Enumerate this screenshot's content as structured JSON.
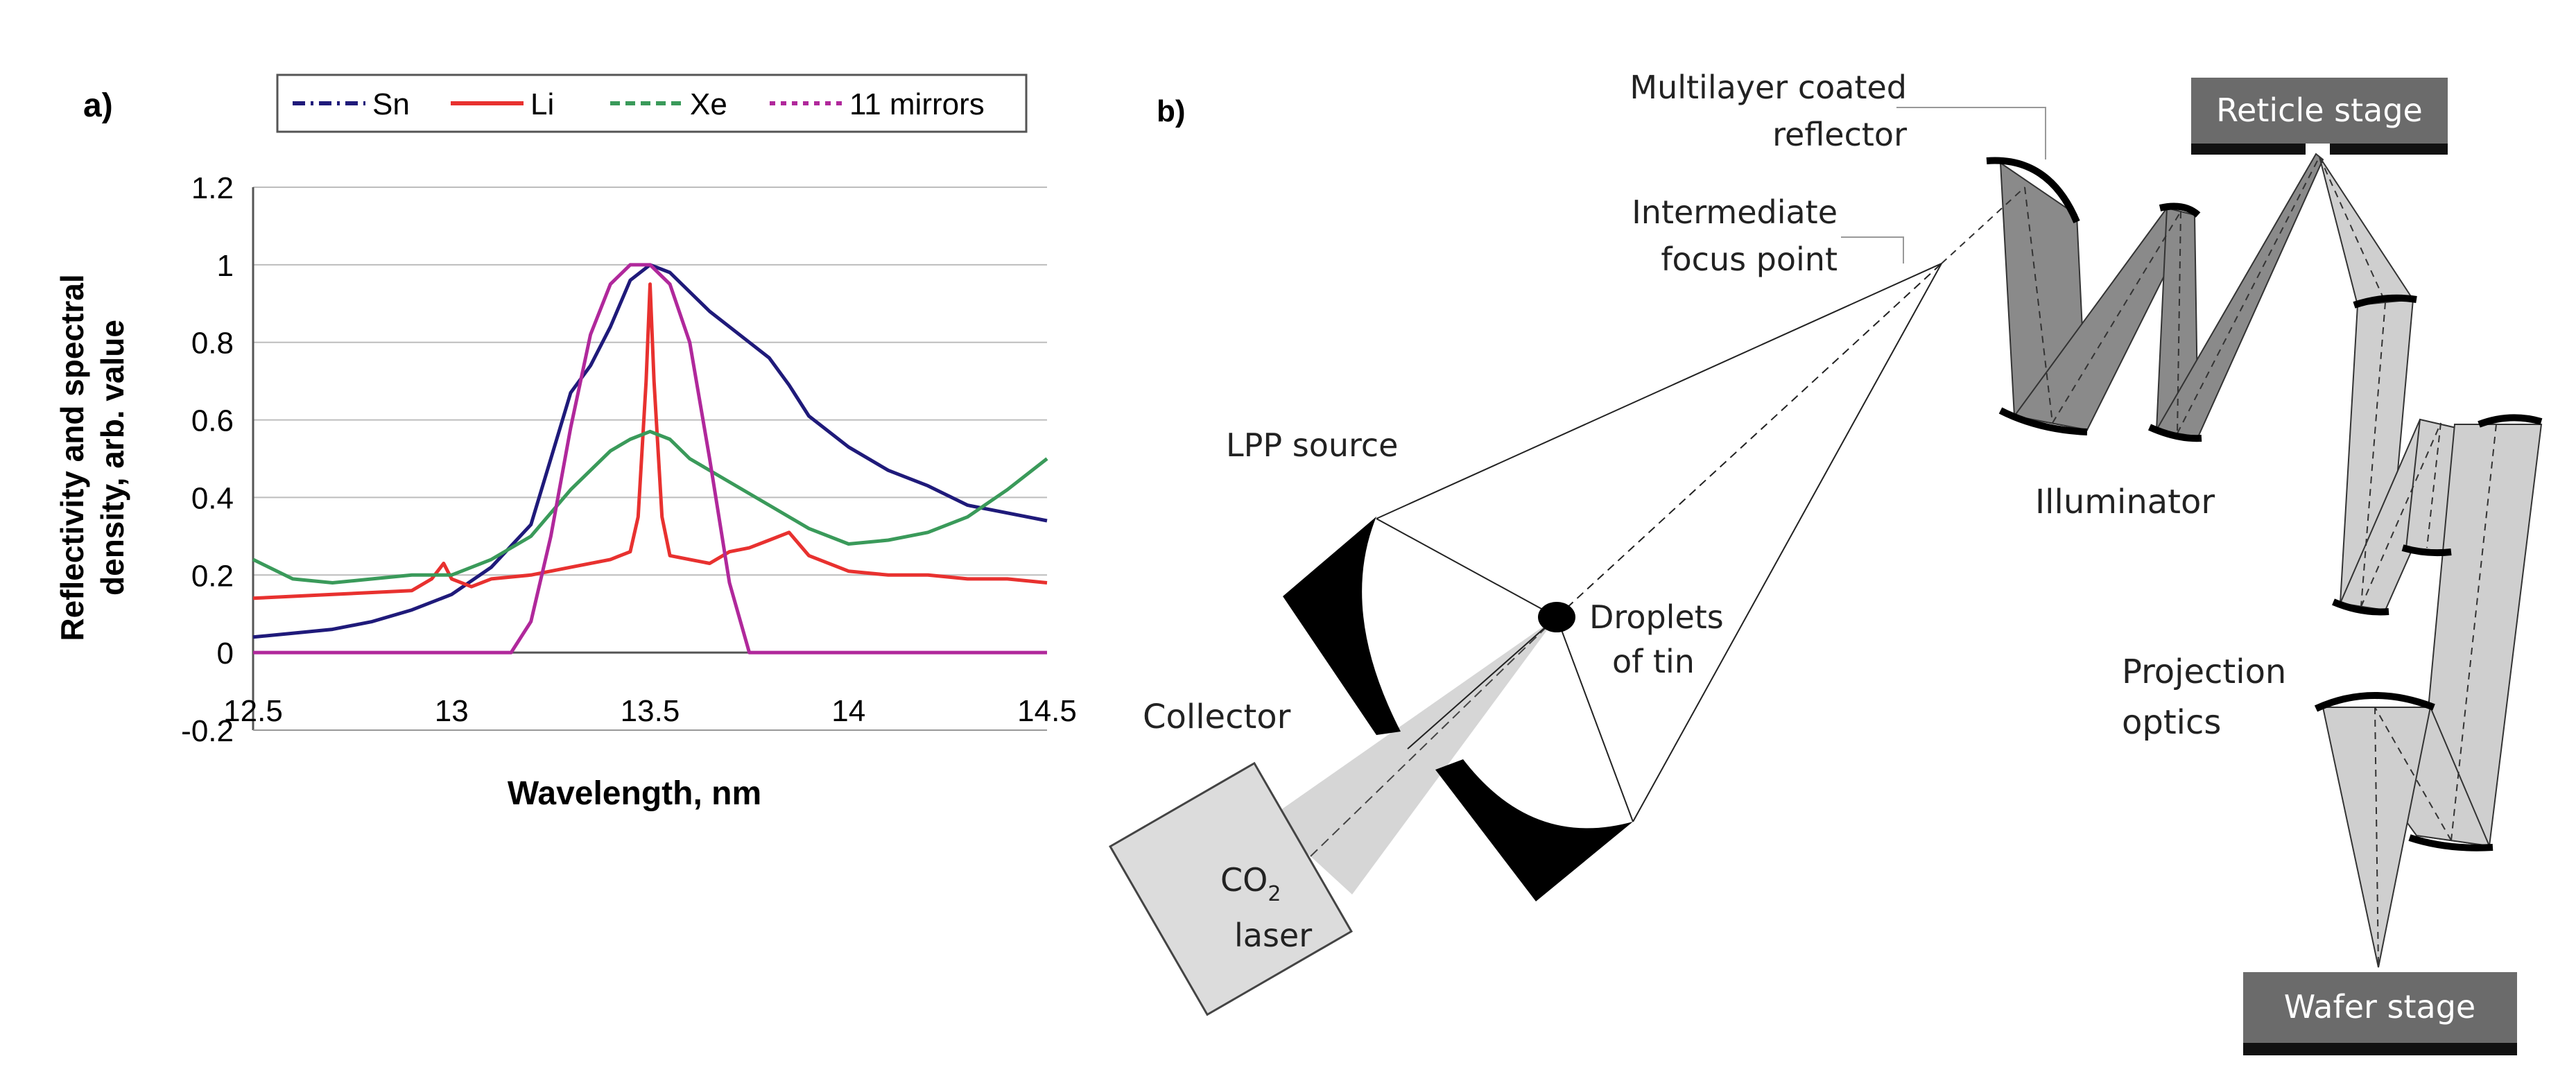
{
  "panel_a": {
    "label": "a)"
  },
  "panel_b": {
    "label": "b)",
    "labels": {
      "multilayer_line1": "Multilayer coated",
      "multilayer_line2": "reflector",
      "reticle_stage": "Reticle stage",
      "intermediate_line1": "Intermediate",
      "intermediate_line2": "focus point",
      "lpp_source": "LPP source",
      "illuminator": "Illuminator",
      "droplets_line1": "Droplets",
      "droplets_line2": "of tin",
      "collector": "Collector",
      "projection_line1": "Projection",
      "projection_line2": "optics",
      "co2_main": "CO",
      "co2_sub": "2",
      "laser": "laser",
      "wafer_stage": "Wafer stage"
    }
  },
  "chart_data": {
    "type": "line",
    "title": "",
    "xlabel": "Wavelength, nm",
    "ylabel_line1": "Reflectivity and spectral",
    "ylabel_line2": "density, arb. value",
    "xlim": [
      12.5,
      14.5
    ],
    "ylim": [
      -0.2,
      1.2
    ],
    "xticks": [
      "12.5",
      "13",
      "13.5",
      "14",
      "14.5"
    ],
    "yticks": [
      "-0.2",
      "0",
      "0.2",
      "0.4",
      "0.6",
      "0.8",
      "1",
      "1.2"
    ],
    "grid": true,
    "legend_position": "top",
    "series": [
      {
        "name": "Sn",
        "color": "#1f1a7a",
        "style": "dash-dot",
        "x": [
          12.5,
          12.6,
          12.7,
          12.8,
          12.9,
          13.0,
          13.1,
          13.2,
          13.25,
          13.3,
          13.35,
          13.4,
          13.45,
          13.5,
          13.55,
          13.6,
          13.65,
          13.7,
          13.75,
          13.8,
          13.85,
          13.9,
          14.0,
          14.1,
          14.2,
          14.3,
          14.4,
          14.5
        ],
        "y": [
          0.04,
          0.05,
          0.06,
          0.08,
          0.11,
          0.15,
          0.22,
          0.33,
          0.5,
          0.67,
          0.74,
          0.84,
          0.96,
          1.0,
          0.98,
          0.93,
          0.88,
          0.84,
          0.8,
          0.76,
          0.69,
          0.61,
          0.53,
          0.47,
          0.43,
          0.38,
          0.36,
          0.34
        ]
      },
      {
        "name": "Li",
        "color": "#e8312f",
        "style": "solid",
        "x": [
          12.5,
          12.7,
          12.9,
          12.95,
          12.98,
          13.0,
          13.05,
          13.1,
          13.2,
          13.3,
          13.4,
          13.45,
          13.47,
          13.49,
          13.5,
          13.51,
          13.53,
          13.55,
          13.6,
          13.65,
          13.7,
          13.75,
          13.8,
          13.85,
          13.9,
          14.0,
          14.1,
          14.2,
          14.3,
          14.4,
          14.5
        ],
        "y": [
          0.14,
          0.15,
          0.16,
          0.19,
          0.23,
          0.19,
          0.17,
          0.19,
          0.2,
          0.22,
          0.24,
          0.26,
          0.35,
          0.7,
          0.95,
          0.7,
          0.35,
          0.25,
          0.24,
          0.23,
          0.26,
          0.27,
          0.29,
          0.31,
          0.25,
          0.21,
          0.2,
          0.2,
          0.19,
          0.19,
          0.18
        ]
      },
      {
        "name": "Xe",
        "color": "#3a9a5a",
        "style": "dashed",
        "x": [
          12.5,
          12.6,
          12.7,
          12.8,
          12.9,
          13.0,
          13.1,
          13.2,
          13.3,
          13.4,
          13.45,
          13.5,
          13.55,
          13.6,
          13.7,
          13.8,
          13.9,
          14.0,
          14.1,
          14.2,
          14.3,
          14.4,
          14.5
        ],
        "y": [
          0.24,
          0.19,
          0.18,
          0.19,
          0.2,
          0.2,
          0.24,
          0.3,
          0.42,
          0.52,
          0.55,
          0.57,
          0.55,
          0.5,
          0.44,
          0.38,
          0.32,
          0.28,
          0.29,
          0.31,
          0.35,
          0.42,
          0.5
        ]
      },
      {
        "name": "11 mirrors",
        "color": "#b0289b",
        "style": "dotted",
        "x": [
          12.5,
          13.0,
          13.15,
          13.2,
          13.25,
          13.3,
          13.35,
          13.4,
          13.45,
          13.5,
          13.55,
          13.6,
          13.65,
          13.7,
          13.75,
          14.5
        ],
        "y": [
          0.0,
          0.0,
          0.0,
          0.08,
          0.3,
          0.58,
          0.82,
          0.95,
          1.0,
          1.0,
          0.95,
          0.8,
          0.5,
          0.18,
          0.0,
          0.0
        ]
      }
    ]
  },
  "colors": {
    "gridline": "#bdbdbd",
    "stage_fill": "#6b6b6b",
    "stage_text": "#ffffff",
    "mirror_dark": "#8a8a8a",
    "mirror_light": "#cfcfcf",
    "laser_fill": "#dcdcdc",
    "beam_fill": "#d6d6d6"
  }
}
